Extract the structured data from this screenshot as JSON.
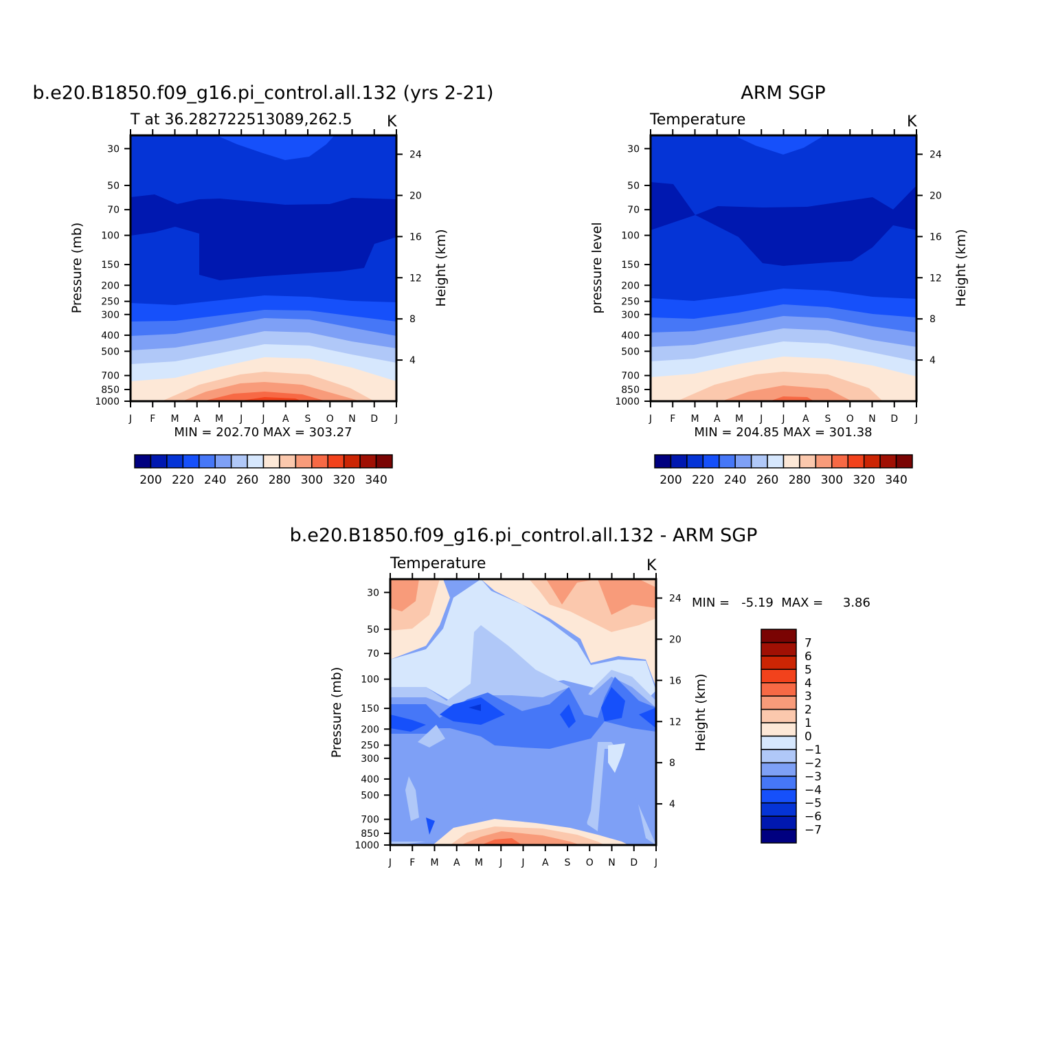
{
  "colors": {
    "abs_scale": [
      "#000080",
      "#0018b0",
      "#0534d6",
      "#1650fa",
      "#4677f7",
      "#7ea0f6",
      "#b0c8f8",
      "#d6e7fd",
      "#fde8d7",
      "#fbc8ad",
      "#f89b7a",
      "#f76945",
      "#f2421c",
      "#cc2504",
      "#a01004",
      "#7a0403"
    ],
    "diff_scale": [
      "#000080",
      "#0018b0",
      "#0534d6",
      "#1650fa",
      "#4677f7",
      "#7ea0f6",
      "#b0c8f8",
      "#d6e7fd",
      "#fde8d7",
      "#fbc8ad",
      "#f89b7a",
      "#f76945",
      "#f2421c",
      "#cc2504",
      "#a01004",
      "#7a0403"
    ]
  },
  "chart_data": [
    {
      "type": "heatmap",
      "title": "b.e20.B1850.f09_g16.pi_control.all.132 (yrs 2-21)",
      "left_label": "T at 36.282722513089,262.5",
      "right_label": "K",
      "xlabel": "",
      "ylabel": "Pressure (mb)",
      "ylabel_right": "Height (km)",
      "x_ticks": [
        "J",
        "F",
        "M",
        "A",
        "M",
        "J",
        "J",
        "A",
        "S",
        "O",
        "N",
        "D",
        "J"
      ],
      "y_ticks": [
        "30",
        "50",
        "70",
        "100",
        "150",
        "200",
        "250",
        "300",
        "400",
        "500",
        "700",
        "850",
        "1000"
      ],
      "y_right_ticks": [
        "24",
        "20",
        "16",
        "12",
        "8",
        "4"
      ],
      "minmax_text": "MIN = 202.70 MAX = 303.27",
      "colorbar_labels": [
        "200",
        "220",
        "240",
        "260",
        "280",
        "300",
        "320",
        "340"
      ],
      "bands_top_to_bottom": [
        {
          "level": 215,
          "top_edge": [
            0,
            0,
            0,
            0,
            0,
            0,
            0,
            0,
            0,
            0,
            0,
            0,
            0
          ],
          "upper_bump": [
            215,
            217,
            224,
            232,
            240,
            250,
            258,
            262,
            255,
            235,
            220,
            216,
            215
          ]
        },
        {
          "level": 210,
          "top_edge": [
            25,
            24,
            28,
            26,
            25,
            26,
            28,
            29,
            27,
            25,
            24,
            25,
            25
          ]
        },
        {
          "level": 215,
          "top_edge": [
            38,
            36,
            33,
            40,
            48,
            52,
            52,
            51,
            50,
            47,
            44,
            38,
            38
          ]
        },
        {
          "level": 220,
          "top_edge": [
            63,
            62,
            62,
            64,
            63,
            63,
            62,
            60,
            60,
            61,
            62,
            62,
            62
          ]
        },
        {
          "level": 230,
          "top_edge": [
            70,
            70,
            69,
            68,
            66,
            65,
            64,
            64,
            65,
            66,
            68,
            69,
            70
          ]
        },
        {
          "level": 240,
          "top_edge": [
            75,
            75,
            75,
            73,
            71,
            69,
            68,
            68,
            69,
            71,
            73,
            75,
            75
          ]
        },
        {
          "level": 250,
          "top_edge": [
            81,
            81,
            80,
            79,
            77,
            76,
            75,
            75,
            76,
            77,
            79,
            81,
            81
          ]
        },
        {
          "level": 260,
          "top_edge": [
            86,
            86,
            86,
            85,
            83,
            81,
            80,
            80,
            81,
            83,
            85,
            86,
            86
          ]
        },
        {
          "level": 270,
          "top_edge": [
            92,
            92,
            91,
            89,
            87,
            85,
            84,
            84,
            85,
            87,
            89,
            91,
            92
          ]
        },
        {
          "level": 280,
          "top_edge": [
            97,
            97,
            97,
            95,
            93,
            91,
            89,
            90,
            91,
            93,
            95,
            97,
            97
          ]
        },
        {
          "level": 290,
          "top_edge": [
            100,
            100,
            100,
            99,
            97,
            95,
            94,
            94,
            95,
            97,
            99,
            100,
            100
          ]
        }
      ]
    },
    {
      "type": "heatmap",
      "title": "ARM SGP",
      "left_label": "Temperature",
      "right_label": "K",
      "xlabel": "",
      "ylabel": "pressure level",
      "ylabel_right": "Height (km)",
      "x_ticks": [
        "J",
        "F",
        "M",
        "A",
        "M",
        "J",
        "J",
        "A",
        "S",
        "O",
        "N",
        "D",
        "J"
      ],
      "y_ticks": [
        "30",
        "50",
        "70",
        "100",
        "150",
        "200",
        "250",
        "300",
        "400",
        "500",
        "700",
        "850",
        "1000"
      ],
      "y_right_ticks": [
        "24",
        "20",
        "16",
        "12",
        "8",
        "4"
      ],
      "minmax_text": "MIN = 204.85 MAX = 301.38",
      "colorbar_labels": [
        "200",
        "220",
        "240",
        "260",
        "280",
        "300",
        "320",
        "340"
      ]
    },
    {
      "type": "heatmap",
      "title": "b.e20.B1850.f09_g16.pi_control.all.132 - ARM SGP",
      "left_label": "Temperature",
      "right_label": "K",
      "xlabel": "",
      "ylabel": "Pressure (mb)",
      "ylabel_right": "Height (km)",
      "x_ticks": [
        "J",
        "F",
        "M",
        "A",
        "M",
        "J",
        "J",
        "A",
        "S",
        "O",
        "N",
        "D",
        "J"
      ],
      "y_ticks": [
        "30",
        "50",
        "70",
        "100",
        "150",
        "200",
        "250",
        "300",
        "400",
        "500",
        "700",
        "850",
        "1000"
      ],
      "y_right_ticks": [
        "24",
        "20",
        "16",
        "12",
        "8",
        "4"
      ],
      "minmax_text": "MIN =   -5.19  MAX =     3.86",
      "colorbar_labels": [
        "7",
        "6",
        "5",
        "4",
        "3",
        "2",
        "1",
        "0",
        "-1",
        "-2",
        "-3",
        "-4",
        "-5",
        "-6",
        "-7"
      ]
    }
  ]
}
